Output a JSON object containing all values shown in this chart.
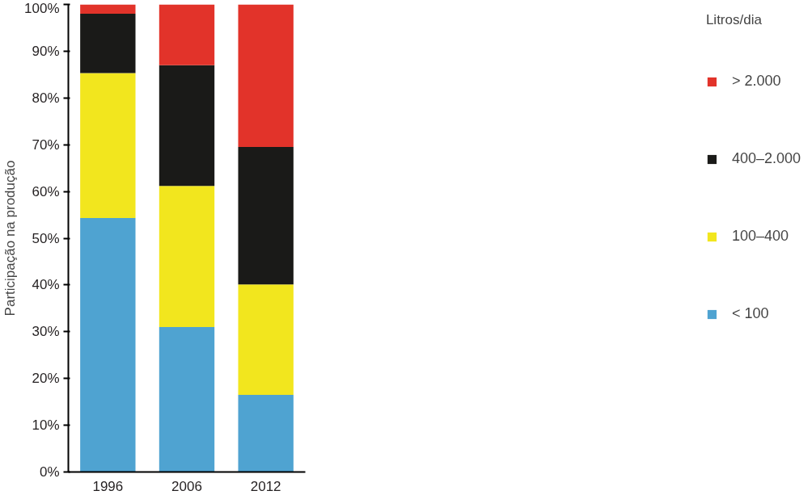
{
  "chart_data": {
    "type": "bar",
    "stacked": true,
    "ylabel": "Participação na produção",
    "legend_title": "Litros/dia",
    "legend": "right",
    "categories": [
      "1996",
      "2006",
      "2012"
    ],
    "series": [
      {
        "name": "< 100",
        "color": "#4fa3d1",
        "values": [
          54.3,
          31.0,
          16.5
        ]
      },
      {
        "name": "100–400",
        "color": "#f2e61e",
        "values": [
          31.0,
          30.2,
          23.6
        ]
      },
      {
        "name": "400–2.000",
        "color": "#1a1a18",
        "values": [
          12.7,
          25.8,
          29.4
        ]
      },
      {
        "name": "> 2.000",
        "color": "#e2332a",
        "values": [
          2.0,
          13.0,
          30.5
        ]
      }
    ],
    "ylim": [
      0,
      100
    ],
    "yticks": [
      {
        "value": 0,
        "label": "0%"
      },
      {
        "value": 10,
        "label": "10%"
      },
      {
        "value": 20,
        "label": "20%"
      },
      {
        "value": 30,
        "label": "30%"
      },
      {
        "value": 40,
        "label": "40%"
      },
      {
        "value": 50,
        "label": "50%"
      },
      {
        "value": 60,
        "label": "60%"
      },
      {
        "value": 70,
        "label": "70%"
      },
      {
        "value": 80,
        "label": "80%"
      },
      {
        "value": 90,
        "label": "90%"
      },
      {
        "value": 100,
        "label": "100%"
      }
    ],
    "grid": false
  }
}
